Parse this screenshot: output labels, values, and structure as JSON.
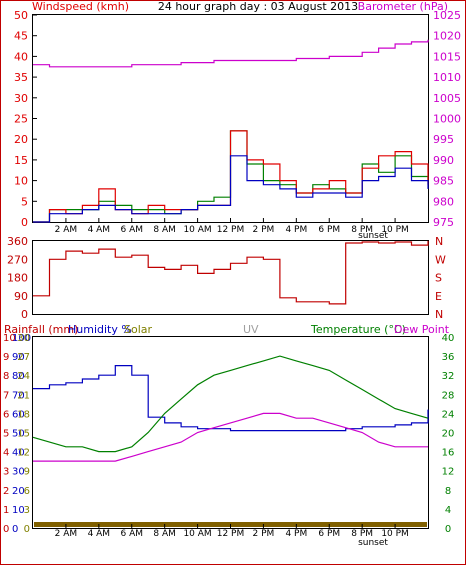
{
  "header": {
    "windspeed_label": "Windspeed (kmh)",
    "title": "24 hour graph day : 03 August 2013",
    "barometer_label": "Barometer (hPa)"
  },
  "footer_labels": {
    "rainfall": "Rainfall (mm)",
    "humidity": "Humidity %",
    "solar": "Solar",
    "uv": "UV",
    "temperature": "Temperature (°C)",
    "dewpoint": "Dew Point",
    "sunset": "sunset"
  },
  "colors": {
    "windspeed": "#e00000",
    "gust": "#e00000",
    "wind_avg": "#0000c0",
    "wind_green": "#008000",
    "barometer": "#cc00cc",
    "direction": "#c00000",
    "humidity": "#0000c0",
    "solar": "#808000",
    "uv": "#a0a0a0",
    "temperature": "#008000",
    "dewpoint": "#cc00cc",
    "rain": "#806000",
    "frame": "#cc0000"
  },
  "x_ticks": [
    "2 AM",
    "4 AM",
    "6 AM",
    "8 AM",
    "10 AM",
    "12 PM",
    "2 PM",
    "4 PM",
    "6 PM",
    "8 PM",
    "10 PM"
  ],
  "chart_data": [
    {
      "type": "line",
      "name": "wind-barometer",
      "xlabel": "",
      "ylabel_left": "Windspeed (kmh)",
      "ylabel_right": "Barometer (hPa)",
      "ylim_left": [
        0,
        50
      ],
      "ylim_right": [
        975,
        1025
      ],
      "yticks_left": [
        "0",
        "5",
        "10",
        "15",
        "20",
        "25",
        "30",
        "35",
        "40",
        "45",
        "50"
      ],
      "yticks_right": [
        "975",
        "980",
        "985",
        "990",
        "995",
        "1000",
        "1005",
        "1010",
        "1015",
        "1020",
        "1025"
      ],
      "x_hours": [
        0,
        1,
        2,
        3,
        4,
        5,
        6,
        7,
        8,
        9,
        10,
        11,
        12,
        13,
        14,
        15,
        16,
        17,
        18,
        19,
        20,
        21,
        22,
        23,
        24
      ],
      "series": [
        {
          "values": [
            1013,
            1012.5,
            1012.5,
            1012.5,
            1012.5,
            1012.5,
            1013,
            1013,
            1013,
            1013.5,
            1013.5,
            1014,
            1014,
            1014,
            1014,
            1014,
            1014.5,
            1014.5,
            1015,
            1015,
            1016,
            1017,
            1018,
            1018.5,
            1019
          ]
        },
        {
          "values": [
            0,
            3,
            3,
            3,
            5,
            4,
            3,
            3,
            2,
            3,
            5,
            6,
            22,
            14,
            10,
            9,
            7,
            9,
            8,
            7,
            14,
            12,
            16,
            11,
            10
          ]
        },
        {
          "values": [
            0,
            3,
            2,
            4,
            8,
            3,
            2,
            4,
            3,
            3,
            4,
            4,
            22,
            15,
            14,
            10,
            7,
            8,
            10,
            7,
            13,
            16,
            17,
            14,
            9
          ]
        },
        {
          "values": [
            0,
            2,
            2,
            3,
            4,
            3,
            2,
            2,
            2,
            3,
            4,
            4,
            16,
            10,
            9,
            8,
            6,
            7,
            7,
            6,
            10,
            11,
            13,
            10,
            8
          ]
        }
      ]
    },
    {
      "type": "line",
      "name": "wind-direction",
      "ylim": [
        0,
        360
      ],
      "yticks": [
        "0",
        "90",
        "180",
        "270",
        "360"
      ],
      "compass": [
        "N",
        "W",
        "S",
        "E",
        "N"
      ],
      "x_hours": [
        0,
        1,
        2,
        3,
        4,
        5,
        6,
        7,
        8,
        9,
        10,
        11,
        12,
        13,
        14,
        15,
        16,
        17,
        18,
        19,
        20,
        21,
        22,
        23,
        24
      ],
      "series": [
        {
          "values": [
            90,
            270,
            310,
            300,
            320,
            280,
            290,
            230,
            220,
            240,
            200,
            220,
            250,
            280,
            270,
            80,
            60,
            60,
            50,
            350,
            355,
            350,
            355,
            340,
            360
          ]
        }
      ]
    },
    {
      "type": "line",
      "name": "rain-humidity-temperature",
      "ylim_rainfall": [
        0,
        10
      ],
      "yticks_rainfall": [
        "0",
        "1",
        "2",
        "3",
        "4",
        "5",
        "6",
        "7",
        "8",
        "9",
        "10"
      ],
      "ylim_humidity": [
        0,
        100
      ],
      "yticks_humidity": [
        "0",
        "10",
        "20",
        "30",
        "40",
        "50",
        "60",
        "70",
        "80",
        "90",
        "100"
      ],
      "ylim_solar": [
        0,
        30
      ],
      "yticks_solar": [
        "0",
        "3",
        "6",
        "9",
        "12",
        "15",
        "18",
        "21",
        "24",
        "27",
        "30"
      ],
      "ylim_temperature": [
        0,
        40
      ],
      "yticks_temperature": [
        "0",
        "4",
        "8",
        "12",
        "16",
        "20",
        "24",
        "28",
        "32",
        "36",
        "40"
      ],
      "x_hours": [
        0,
        1,
        2,
        3,
        4,
        5,
        6,
        7,
        8,
        9,
        10,
        11,
        12,
        13,
        14,
        15,
        16,
        17,
        18,
        19,
        20,
        21,
        22,
        23,
        24
      ],
      "series": [
        {
          "values": [
            73,
            75,
            76,
            78,
            80,
            85,
            80,
            58,
            55,
            53,
            52,
            52,
            51,
            51,
            51,
            51,
            51,
            51,
            51,
            52,
            53,
            53,
            54,
            55,
            62
          ]
        },
        {
          "values": [
            19,
            18,
            17,
            17,
            16,
            16,
            17,
            20,
            24,
            27,
            30,
            32,
            33,
            34,
            35,
            36,
            35,
            34,
            33,
            31,
            29,
            27,
            25,
            24,
            23
          ]
        },
        {
          "values": [
            14,
            14,
            14,
            14,
            14,
            14,
            15,
            16,
            17,
            18,
            20,
            21,
            22,
            23,
            24,
            24,
            23,
            23,
            22,
            21,
            20,
            18,
            17,
            17,
            17
          ]
        },
        {
          "values": [
            0,
            0,
            0,
            0,
            0,
            0,
            0,
            0,
            0,
            0,
            0,
            0,
            0,
            0,
            0,
            0,
            0,
            0,
            0,
            0,
            0,
            0,
            0,
            0,
            0
          ]
        }
      ]
    }
  ]
}
